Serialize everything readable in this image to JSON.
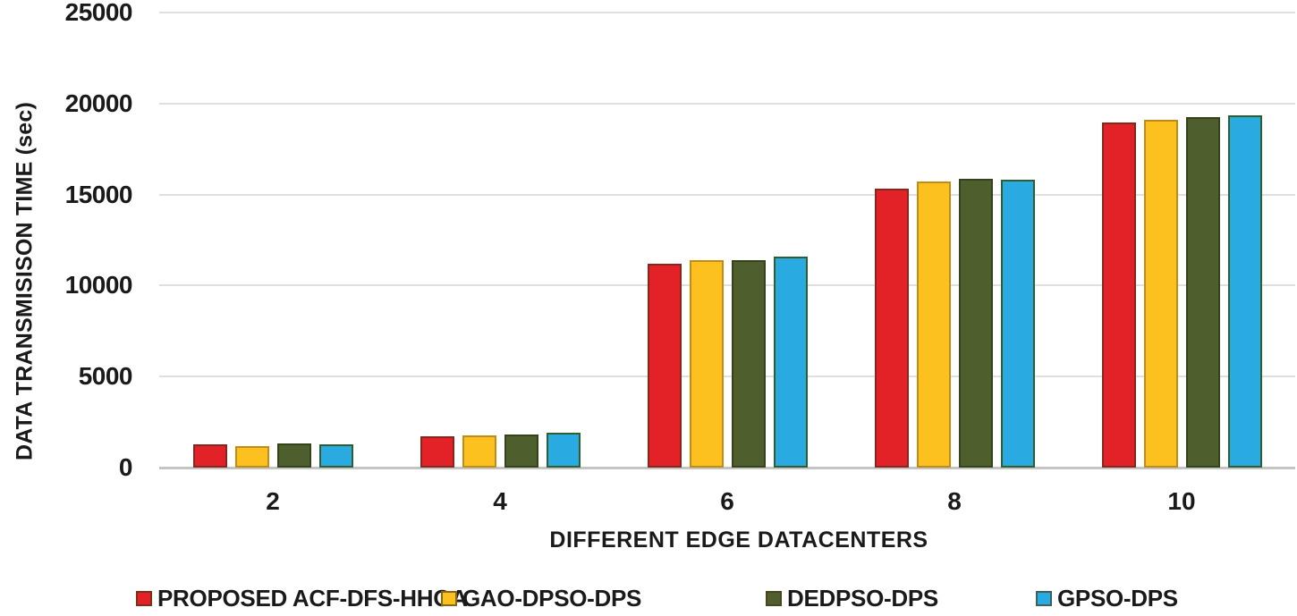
{
  "chart_data": {
    "type": "bar",
    "title": "",
    "xlabel": "DIFFERENT EDGE DATACENTERS",
    "ylabel": "DATA TRANSMISISON TIME (sec)",
    "categories": [
      "2",
      "4",
      "6",
      "8",
      "10"
    ],
    "series": [
      {
        "name": "PROPOSED ACF-DFS-HHOA",
        "color": "#E32227",
        "border": "#86271E",
        "values": [
          1300,
          1700,
          11200,
          15300,
          18950
        ]
      },
      {
        "name": "GAO-DPSO-DPS",
        "color": "#FCC11E",
        "border": "#C08C15",
        "values": [
          1200,
          1750,
          11400,
          15700,
          19100
        ]
      },
      {
        "name": "DEDPSO-DPS",
        "color": "#4E5F2D",
        "border": "#35431D",
        "values": [
          1350,
          1800,
          11400,
          15850,
          19250
        ]
      },
      {
        "name": "GPSO-DPS",
        "color": "#29ABE2",
        "border": "#2F5F2F",
        "values": [
          1300,
          1900,
          11600,
          15800,
          19350
        ]
      }
    ],
    "ylim": [
      0,
      25000
    ],
    "ytick_step": 5000,
    "ytick_labels": [
      "0",
      "5000",
      "10000",
      "15000",
      "20000",
      "25000"
    ],
    "grid": true,
    "gridline_color": "#DFDFDF",
    "axis_line_color": "#C4C4C4",
    "legend_position": "bottom"
  }
}
